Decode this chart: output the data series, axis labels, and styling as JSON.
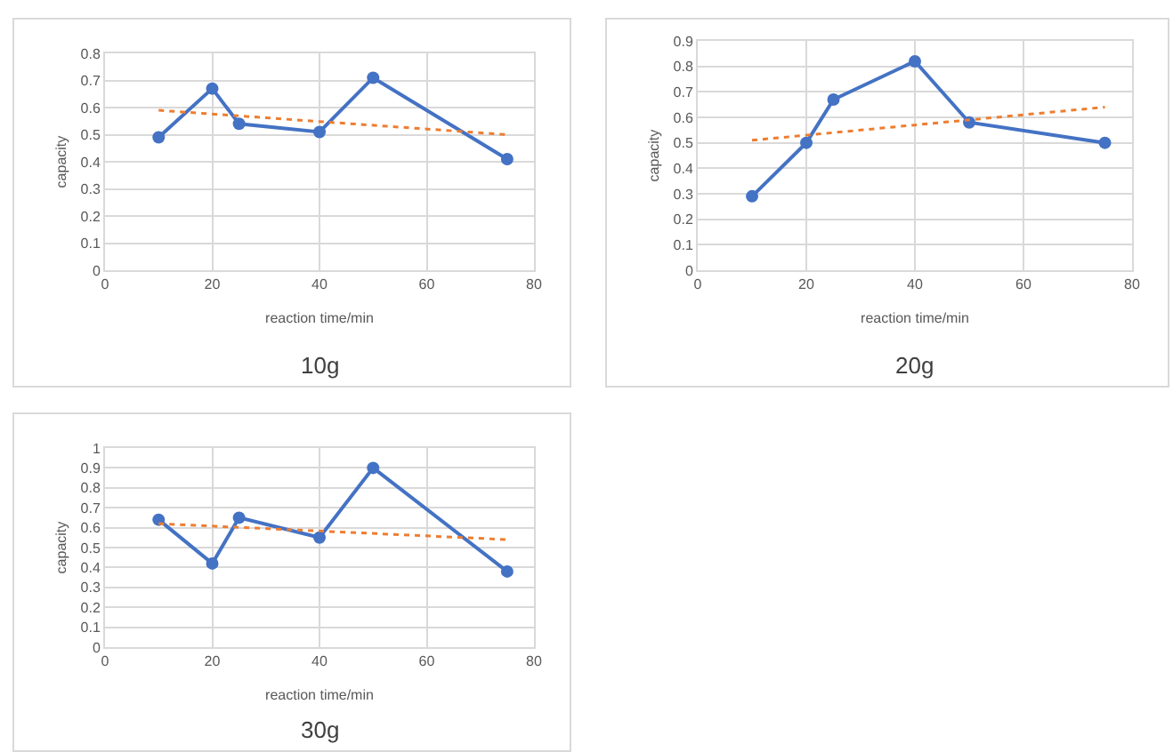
{
  "chart_data": [
    {
      "type": "line",
      "title": "10g",
      "xlabel": "reaction time/min",
      "ylabel": "capacity",
      "xlim": [
        0,
        80
      ],
      "xticks": [
        0,
        20,
        40,
        60,
        80
      ],
      "ylim": [
        0,
        0.8
      ],
      "yticks": [
        0,
        0.1,
        0.2,
        0.3,
        0.4,
        0.5,
        0.6,
        0.7,
        0.8
      ],
      "grid": true,
      "series": [
        {
          "color": "#4472c4",
          "marker": "circle",
          "line_style": "solid",
          "x": [
            10,
            20,
            25,
            40,
            50,
            75
          ],
          "values": [
            0.49,
            0.67,
            0.54,
            0.51,
            0.71,
            0.41
          ]
        },
        {
          "color": "#ed7d31",
          "marker": "none",
          "line_style": "dotted",
          "x": [
            10,
            75
          ],
          "values": [
            0.59,
            0.5
          ]
        }
      ]
    },
    {
      "type": "line",
      "title": "20g",
      "xlabel": "reaction time/min",
      "ylabel": "capacity",
      "xlim": [
        0,
        80
      ],
      "xticks": [
        0,
        20,
        40,
        60,
        80
      ],
      "ylim": [
        0,
        0.9
      ],
      "yticks": [
        0,
        0.1,
        0.2,
        0.3,
        0.4,
        0.5,
        0.6,
        0.7,
        0.8,
        0.9
      ],
      "grid": true,
      "series": [
        {
          "color": "#4472c4",
          "marker": "circle",
          "line_style": "solid",
          "x": [
            10,
            20,
            25,
            40,
            50,
            75
          ],
          "values": [
            0.29,
            0.5,
            0.67,
            0.82,
            0.58,
            0.5
          ]
        },
        {
          "color": "#ed7d31",
          "marker": "none",
          "line_style": "dotted",
          "x": [
            10,
            75
          ],
          "values": [
            0.51,
            0.64
          ]
        }
      ]
    },
    {
      "type": "line",
      "title": "30g",
      "xlabel": "reaction time/min",
      "ylabel": "capacity",
      "xlim": [
        0,
        80
      ],
      "xticks": [
        0,
        20,
        40,
        60,
        80
      ],
      "ylim": [
        0,
        1
      ],
      "yticks": [
        0,
        0.1,
        0.2,
        0.3,
        0.4,
        0.5,
        0.6,
        0.7,
        0.8,
        0.9,
        1
      ],
      "grid": true,
      "series": [
        {
          "color": "#4472c4",
          "marker": "circle",
          "line_style": "solid",
          "x": [
            10,
            20,
            25,
            40,
            50,
            75
          ],
          "values": [
            0.64,
            0.42,
            0.65,
            0.55,
            0.9,
            0.38
          ]
        },
        {
          "color": "#ed7d31",
          "marker": "none",
          "line_style": "dotted",
          "x": [
            10,
            75
          ],
          "values": [
            0.62,
            0.54
          ]
        }
      ]
    }
  ]
}
